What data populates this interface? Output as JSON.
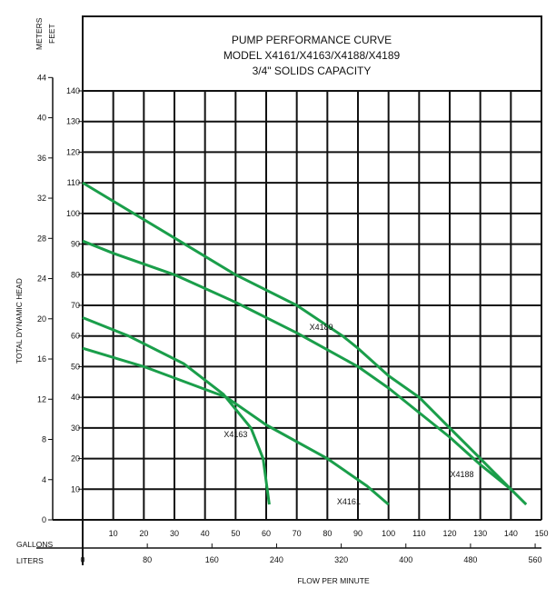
{
  "chart_data": {
    "type": "line",
    "title_lines": [
      "PUMP PERFORMANCE CURVE",
      "MODEL X4161/X4163/X4188/X4189",
      "3/4\" SOLIDS CAPACITY"
    ],
    "xlabel": "FLOW PER MINUTE",
    "ylabel": "TOTAL DYNAMIC HEAD",
    "x_units_primary": "GALLONS",
    "x_units_secondary": "LITERS",
    "y_units_primary": "FEET",
    "y_units_secondary": "METERS",
    "xlim": [
      0,
      150
    ],
    "ylim": [
      0,
      140
    ],
    "x_ticks": [
      10,
      20,
      30,
      40,
      50,
      60,
      70,
      80,
      90,
      100,
      110,
      120,
      130,
      140,
      150
    ],
    "liters_ticks": [
      0,
      80,
      160,
      240,
      320,
      400,
      480,
      560
    ],
    "y_ticks": [
      10,
      20,
      30,
      40,
      50,
      60,
      70,
      80,
      90,
      100,
      110,
      120,
      130,
      140
    ],
    "meters_ticks": [
      0,
      4,
      8,
      12,
      16,
      20,
      24,
      28,
      32,
      36,
      40,
      44
    ],
    "grid": true,
    "line_color": "#1a9e4a",
    "series": [
      {
        "name": "X4189",
        "label_at": [
          78,
          62
        ],
        "points": [
          [
            0,
            110
          ],
          [
            30,
            92
          ],
          [
            50,
            80
          ],
          [
            70,
            70
          ],
          [
            85,
            60
          ],
          [
            90,
            56
          ],
          [
            100,
            47
          ],
          [
            110,
            40
          ],
          [
            120,
            30
          ],
          [
            130,
            20
          ],
          [
            140,
            10
          ]
        ]
      },
      {
        "name": "X4188",
        "label_at": [
          124,
          14
        ],
        "points": [
          [
            0,
            91
          ],
          [
            10,
            87
          ],
          [
            30,
            80
          ],
          [
            50,
            71
          ],
          [
            70,
            61
          ],
          [
            90,
            50
          ],
          [
            100,
            43
          ],
          [
            110,
            35
          ],
          [
            120,
            27
          ],
          [
            130,
            18
          ],
          [
            140,
            10
          ],
          [
            145,
            5
          ]
        ]
      },
      {
        "name": "X4163",
        "label_at": [
          50,
          27
        ],
        "points": [
          [
            0,
            66
          ],
          [
            15,
            60
          ],
          [
            33,
            51
          ],
          [
            46,
            41
          ],
          [
            55,
            30
          ],
          [
            59,
            20
          ],
          [
            61,
            5
          ]
        ]
      },
      {
        "name": "X4161",
        "label_at": [
          87,
          5
        ],
        "points": [
          [
            0,
            56
          ],
          [
            20,
            50
          ],
          [
            47,
            40
          ],
          [
            60,
            31
          ],
          [
            80,
            20
          ],
          [
            93,
            11
          ],
          [
            100,
            5
          ]
        ]
      }
    ]
  }
}
